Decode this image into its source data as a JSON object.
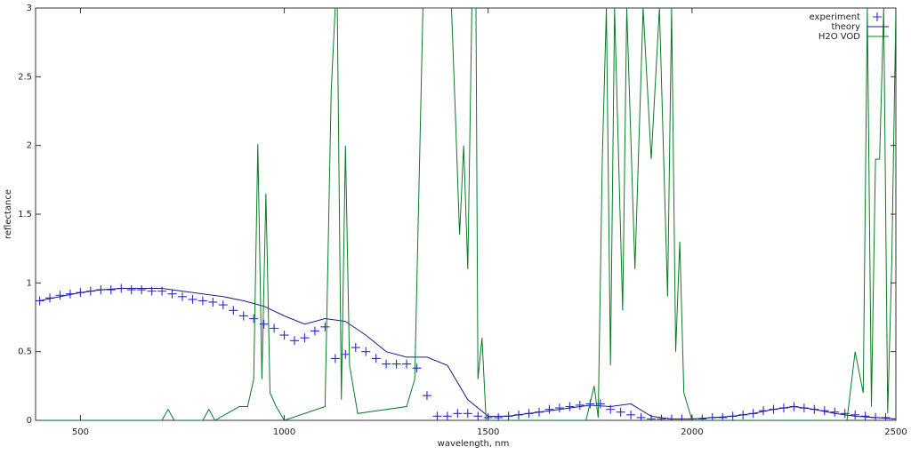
{
  "chart_data": {
    "type": "line",
    "xlabel": "wavelength, nm",
    "ylabel": "reflectance",
    "xlim": [
      390,
      2500
    ],
    "xticks": [
      500,
      1000,
      1500,
      2000,
      2500
    ],
    "ylim": [
      0,
      3
    ],
    "yticks": [
      0,
      0.5,
      1,
      1.5,
      2,
      2.5,
      3
    ],
    "grid": false,
    "legend": "top-right",
    "series": [
      {
        "name": "experiment",
        "color": "#2a2ad6",
        "style": "points",
        "x": [
          400,
          425,
          450,
          475,
          500,
          525,
          550,
          575,
          600,
          625,
          650,
          675,
          700,
          725,
          750,
          775,
          800,
          825,
          850,
          875,
          900,
          925,
          950,
          975,
          1000,
          1025,
          1050,
          1075,
          1100,
          1125,
          1150,
          1175,
          1200,
          1225,
          1250,
          1275,
          1300,
          1325,
          1350,
          1375,
          1400,
          1425,
          1450,
          1475,
          1500,
          1525,
          1550,
          1575,
          1600,
          1625,
          1650,
          1675,
          1700,
          1725,
          1750,
          1775,
          1800,
          1825,
          1850,
          1875,
          1900,
          1925,
          1950,
          1975,
          2000,
          2025,
          2050,
          2075,
          2100,
          2125,
          2150,
          2175,
          2200,
          2225,
          2250,
          2275,
          2300,
          2325,
          2350,
          2375,
          2400,
          2425,
          2450,
          2475,
          2500
        ],
        "values": [
          0.87,
          0.89,
          0.91,
          0.92,
          0.93,
          0.94,
          0.95,
          0.95,
          0.96,
          0.95,
          0.95,
          0.94,
          0.94,
          0.92,
          0.9,
          0.88,
          0.87,
          0.86,
          0.84,
          0.8,
          0.76,
          0.74,
          0.7,
          0.67,
          0.62,
          0.58,
          0.6,
          0.65,
          0.68,
          0.45,
          0.48,
          0.53,
          0.5,
          0.45,
          0.41,
          0.41,
          0.41,
          0.38,
          0.18,
          0.03,
          0.03,
          0.05,
          0.05,
          0.03,
          0.02,
          0.02,
          0.03,
          0.04,
          0.05,
          0.06,
          0.08,
          0.09,
          0.1,
          0.11,
          0.12,
          0.12,
          0.08,
          0.06,
          0.04,
          0.02,
          0.01,
          0.01,
          0.01,
          0.01,
          0.01,
          0.01,
          0.02,
          0.02,
          0.03,
          0.04,
          0.05,
          0.07,
          0.08,
          0.09,
          0.1,
          0.09,
          0.08,
          0.07,
          0.06,
          0.05,
          0.04,
          0.03,
          0.02,
          0.02,
          0.01
        ]
      },
      {
        "name": "theory",
        "color": "#1c1c8c",
        "style": "lines",
        "x": [
          400,
          450,
          500,
          550,
          600,
          650,
          700,
          750,
          800,
          850,
          900,
          950,
          1000,
          1050,
          1100,
          1150,
          1200,
          1250,
          1300,
          1350,
          1400,
          1450,
          1500,
          1550,
          1600,
          1650,
          1700,
          1750,
          1800,
          1850,
          1900,
          1950,
          2000,
          2050,
          2100,
          2150,
          2200,
          2250,
          2300,
          2350,
          2400,
          2450,
          2500
        ],
        "values": [
          0.87,
          0.9,
          0.93,
          0.95,
          0.96,
          0.96,
          0.96,
          0.94,
          0.92,
          0.9,
          0.87,
          0.83,
          0.76,
          0.7,
          0.74,
          0.72,
          0.62,
          0.5,
          0.46,
          0.46,
          0.4,
          0.15,
          0.03,
          0.03,
          0.05,
          0.07,
          0.09,
          0.11,
          0.1,
          0.12,
          0.03,
          0.01,
          0.01,
          0.02,
          0.03,
          0.05,
          0.08,
          0.1,
          0.08,
          0.05,
          0.03,
          0.02,
          0.01
        ]
      },
      {
        "name": "H2O VOD",
        "color": "#0a7a28",
        "style": "lines",
        "x": [
          400,
          700,
          715,
          730,
          800,
          815,
          830,
          890,
          910,
          925,
          935,
          945,
          955,
          965,
          980,
          1000,
          1100,
          1115,
          1125,
          1130,
          1140,
          1150,
          1160,
          1180,
          1300,
          1320,
          1340,
          1410,
          1420,
          1430,
          1440,
          1450,
          1460,
          1470,
          1475,
          1485,
          1495,
          1740,
          1760,
          1770,
          1780,
          1790,
          1800,
          1810,
          1830,
          1840,
          1860,
          1880,
          1900,
          1920,
          1940,
          1950,
          1960,
          1970,
          1980,
          2000,
          2380,
          2400,
          2420,
          2430,
          2440,
          2450,
          2460,
          2470,
          2480,
          2490,
          2500
        ],
        "values": [
          0,
          0,
          0.08,
          0,
          0,
          0.08,
          0,
          0.1,
          0.1,
          0.3,
          2.01,
          0.3,
          1.65,
          0.2,
          0.1,
          0,
          0.1,
          2.4,
          3,
          3,
          0.15,
          2.0,
          0.4,
          0.05,
          0.1,
          0.3,
          3,
          3,
          2.2,
          1.35,
          2.0,
          1.1,
          3,
          3,
          0.3,
          0.6,
          0,
          0,
          0.25,
          0.02,
          1.9,
          3,
          0.4,
          3,
          0.8,
          3,
          1.1,
          3,
          1.9,
          3,
          0.9,
          3,
          0.5,
          1.3,
          0.2,
          0,
          0,
          0.5,
          0.2,
          3,
          0.1,
          1.9,
          1.9,
          3,
          0.05,
          1.15,
          3
        ]
      }
    ]
  }
}
